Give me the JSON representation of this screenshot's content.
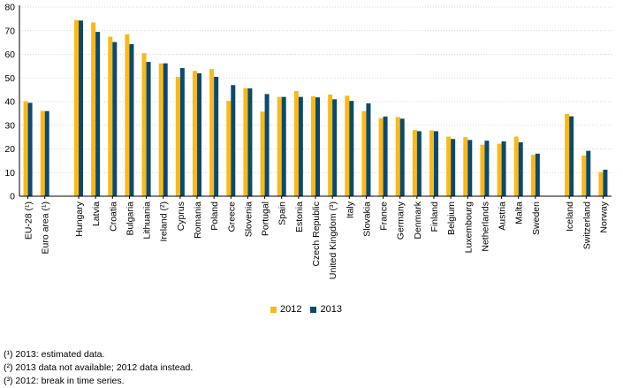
{
  "chart_data": {
    "type": "bar",
    "ylim": [
      0,
      80
    ],
    "yticks": [
      0,
      10,
      20,
      30,
      40,
      50,
      60,
      70,
      80
    ],
    "grid": true,
    "legend_position": "bottom-center",
    "colors": {
      "2012": "#fbb917",
      "2013": "#0b4a6e"
    },
    "categories": [
      "EU-28 (¹)",
      "Euro area (¹)",
      "Hungary",
      "Latvia",
      "Croatia",
      "Bulgaria",
      "Lithuania",
      "Ireland (²)",
      "Cyprus",
      "Romania",
      "Poland",
      "Greece",
      "Slovenia",
      "Portugal",
      "Spain",
      "Estonia",
      "Czech Republic",
      "United Kingdom (³)",
      "Italy",
      "Slovakia",
      "France",
      "Germany",
      "Denmark",
      "Finland",
      "Belgium",
      "Luxembourg",
      "Netherlands",
      "Austria",
      "Malta",
      "Sweden",
      "Iceland",
      "Switzerland",
      "Norway"
    ],
    "groups": [
      2,
      28,
      3
    ],
    "series": [
      {
        "name": "2012",
        "values": [
          40.2,
          36.1,
          74.5,
          73.5,
          67.5,
          68.5,
          60.5,
          56.2,
          50.5,
          53.0,
          53.8,
          40.3,
          45.7,
          35.8,
          42.0,
          44.5,
          42.3,
          43.0,
          42.5,
          36.0,
          33.0,
          33.5,
          28.0,
          27.8,
          25.2,
          25.0,
          21.8,
          22.2,
          25.2,
          17.5,
          34.8,
          17.2,
          10.2
        ]
      },
      {
        "name": "2013",
        "values": [
          39.5,
          36.0,
          74.3,
          69.5,
          65.2,
          64.3,
          56.8,
          56.2,
          54.2,
          52.0,
          50.5,
          47.0,
          45.6,
          43.2,
          42.0,
          42.0,
          41.8,
          41.0,
          40.3,
          39.3,
          33.7,
          32.8,
          27.5,
          27.5,
          24.2,
          23.8,
          23.5,
          23.2,
          22.8,
          18.0,
          33.8,
          19.2,
          11.2
        ]
      }
    ]
  },
  "legend": [
    {
      "label": "2012",
      "color": "#fbb917"
    },
    {
      "label": "2013",
      "color": "#0b4a6e"
    }
  ],
  "notes": [
    "(¹) 2013: estimated data.",
    "(²) 2013 data not available; 2012 data instead.",
    "(³) 2012: break in time series."
  ]
}
